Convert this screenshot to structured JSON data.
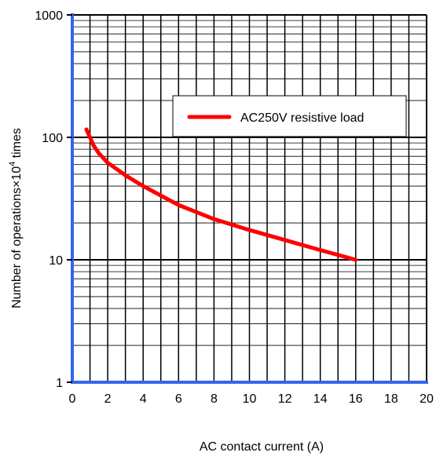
{
  "chart_data": {
    "type": "line",
    "title": "",
    "xlabel": "AC contact current (A)",
    "ylabel_main": "Number of operations×",
    "ylabel_base": "10",
    "ylabel_exp": "4",
    "ylabel_suffix": " times",
    "xlim": [
      0,
      20
    ],
    "ylim": [
      1,
      1000
    ],
    "yscale": "log",
    "grid": true,
    "x_ticks": [
      "0",
      "2",
      "4",
      "6",
      "8",
      "10",
      "12",
      "14",
      "16",
      "18",
      "20"
    ],
    "x_tick_values": [
      0,
      2,
      4,
      6,
      8,
      10,
      12,
      14,
      16,
      18,
      20
    ],
    "y_ticks": [
      "1",
      "10",
      "100",
      "1000"
    ],
    "y_tick_values": [
      1,
      10,
      100,
      1000
    ],
    "legend_placement": "top-right",
    "series": [
      {
        "name": "AC250V resistive load",
        "color": "#ff0000",
        "x": [
          0.8,
          1.0,
          1.2,
          1.5,
          2.0,
          3.0,
          4.0,
          6.0,
          8.0,
          10.0,
          12.0,
          14.0,
          16.0
        ],
        "y": [
          116,
          100,
          86,
          74,
          62,
          49,
          40,
          28,
          21.5,
          17.5,
          14.5,
          12.0,
          10.0
        ]
      }
    ],
    "axis_color": "#3366ee",
    "grid_color": "#000000"
  }
}
